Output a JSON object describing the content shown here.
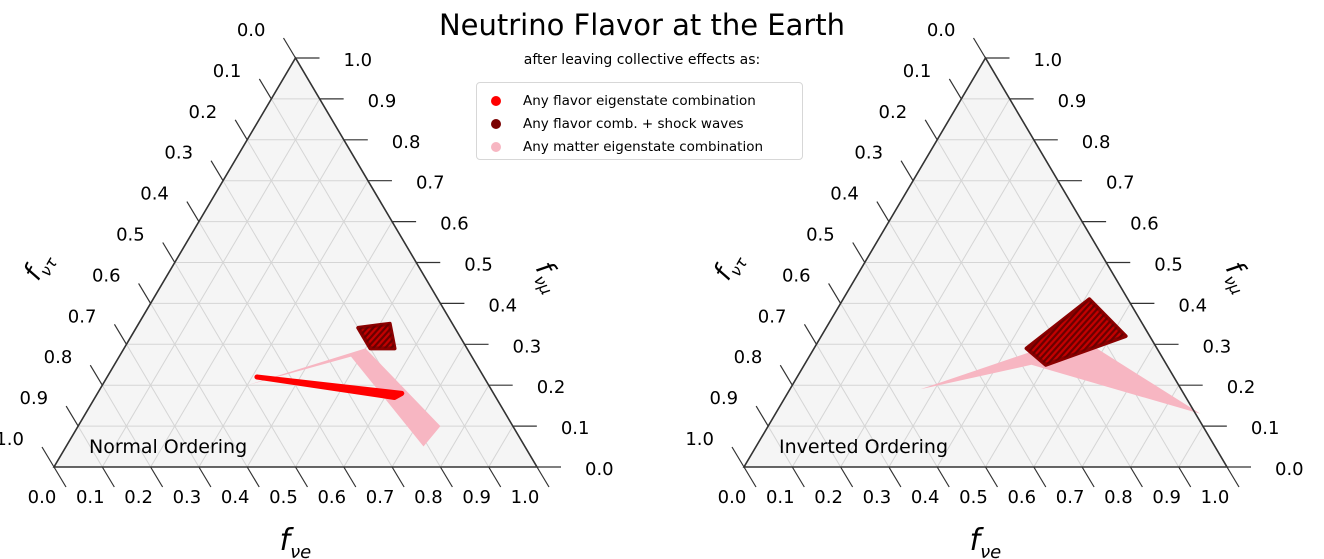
{
  "title": "Neutrino Flavor at the Earth",
  "subtitle": "after leaving collective effects as:",
  "legend": [
    {
      "label": "Any flavor eigenstate combination",
      "color": "#ff0000"
    },
    {
      "label": "Any flavor comb. + shock waves",
      "color": "#7a0000"
    },
    {
      "label": "Any matter eigenstate combination",
      "color": "#f7b6c2"
    }
  ],
  "chart_data": [
    {
      "type": "ternary",
      "annotation": "Normal Ordering",
      "xlabel": "f_νe",
      "right_label": "f_νμ",
      "left_label": "f_ντ",
      "ticks": [
        "0.0",
        "0.1",
        "0.2",
        "0.3",
        "0.4",
        "0.5",
        "0.6",
        "0.7",
        "0.8",
        "0.9",
        "1.0"
      ],
      "grid": true,
      "regions": {
        "matter_eigenstate": [
          {
            "fe": 0.3,
            "fmu": 0.2,
            "ftau": 0.5
          },
          {
            "fe": 0.5,
            "fmu": 0.29,
            "ftau": 0.21
          },
          {
            "fe": 0.75,
            "fmu": 0.1,
            "ftau": 0.15
          },
          {
            "fe": 0.74,
            "fmu": 0.05,
            "ftau": 0.21
          },
          {
            "fe": 0.48,
            "fmu": 0.27,
            "ftau": 0.25
          }
        ],
        "flavor_eigenstate": [
          {
            "fe": 0.31,
            "fmu": 0.22,
            "ftau": 0.47
          },
          {
            "fe": 0.63,
            "fmu": 0.18,
            "ftau": 0.19
          },
          {
            "fe": 0.62,
            "fmu": 0.17,
            "ftau": 0.21
          }
        ],
        "flavor_shock": [
          {
            "fe": 0.46,
            "fmu": 0.34,
            "ftau": 0.2
          },
          {
            "fe": 0.52,
            "fmu": 0.35,
            "ftau": 0.13
          },
          {
            "fe": 0.56,
            "fmu": 0.29,
            "ftau": 0.15
          },
          {
            "fe": 0.51,
            "fmu": 0.29,
            "ftau": 0.2
          }
        ]
      }
    },
    {
      "type": "ternary",
      "annotation": "Inverted Ordering",
      "xlabel": "f_νe",
      "right_label": "f_νμ",
      "left_label": "f_ντ",
      "ticks": [
        "0.0",
        "0.1",
        "0.2",
        "0.3",
        "0.4",
        "0.5",
        "0.6",
        "0.7",
        "0.8",
        "0.9",
        "1.0"
      ],
      "grid": true,
      "regions": {
        "matter_eigenstate": [
          {
            "fe": 0.27,
            "fmu": 0.19,
            "ftau": 0.54
          },
          {
            "fe": 0.53,
            "fmu": 0.32,
            "ftau": 0.15
          },
          {
            "fe": 0.88,
            "fmu": 0.13,
            "ftau": -0.01
          },
          {
            "fe": 0.47,
            "fmu": 0.25,
            "ftau": 0.28
          }
        ],
        "flavor_eigenstate": [],
        "flavor_shock": [
          {
            "fe": 0.44,
            "fmu": 0.29,
            "ftau": 0.27
          },
          {
            "fe": 0.51,
            "fmu": 0.41,
            "ftau": 0.08
          },
          {
            "fe": 0.63,
            "fmu": 0.32,
            "ftau": 0.05
          },
          {
            "fe": 0.5,
            "fmu": 0.25,
            "ftau": 0.25
          }
        ]
      }
    }
  ]
}
